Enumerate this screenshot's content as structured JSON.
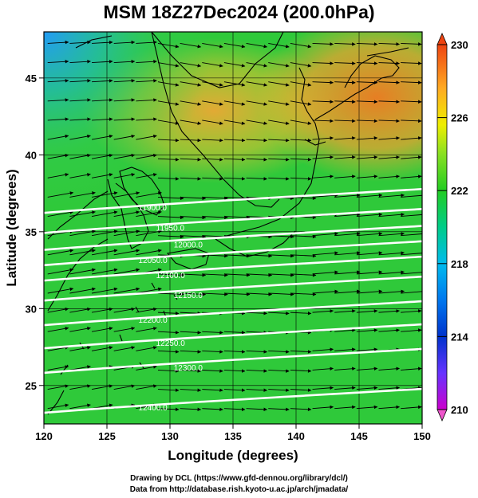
{
  "title": "MSM 18Z27Dec2024 (200.0hPa)",
  "x_axis": {
    "label": "Longitude (degrees)",
    "range": [
      120,
      150
    ],
    "ticks": [
      "120",
      "125",
      "130",
      "135",
      "140",
      "145",
      "150"
    ]
  },
  "y_axis": {
    "label": "Latitude  (degrees)",
    "range": [
      22.5,
      48
    ],
    "ticks": [
      "25",
      "30",
      "35",
      "40",
      "45"
    ]
  },
  "colorbar": {
    "range": [
      210,
      230
    ],
    "ticks": [
      "210",
      "214",
      "218",
      "222",
      "226",
      "230"
    ]
  },
  "contours": [
    {
      "label": "11900.0",
      "lat": 37.0
    },
    {
      "label": "11950.0",
      "lat": 35.7
    },
    {
      "label": "12000.0",
      "lat": 34.6
    },
    {
      "label": "12050.0",
      "lat": 33.6
    },
    {
      "label": "12100.0",
      "lat": 32.6
    },
    {
      "label": "12150.0",
      "lat": 31.3
    },
    {
      "label": "12200.0",
      "lat": 29.7
    },
    {
      "label": "12250.0",
      "lat": 28.2
    },
    {
      "label": "12300.0",
      "lat": 26.6
    },
    {
      "label": "12400.0",
      "lat": 24.0
    }
  ],
  "credit": {
    "line1": "Drawing by DCL (https://www.gfd-dennou.org/library/dcl/)",
    "line2": "Data from http://database.rish.kyoto-u.ac.jp/arch/jmadata/"
  }
}
